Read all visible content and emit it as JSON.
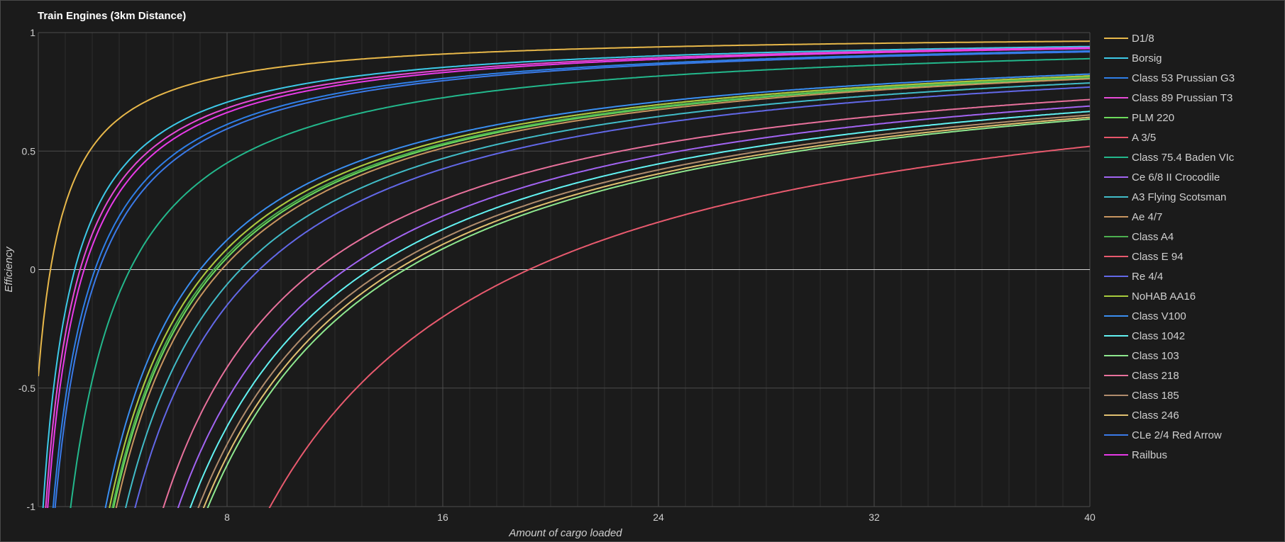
{
  "window": {
    "title": "Train Engines (3km Distance)"
  },
  "colors": {
    "background": "#1b1b1b",
    "grid_major": "#4d4d4d",
    "grid_minor": "#2e2e2e",
    "zero_line": "#d9d9d9",
    "text": "#cfcfcf"
  },
  "chart_data": {
    "type": "line",
    "title": "Train Engines (3km Distance)",
    "xlabel": "Amount of cargo loaded",
    "ylabel": "Efficiency",
    "xlim": [
      1,
      40
    ],
    "ylim": [
      -1,
      1
    ],
    "x_ticks": [
      "8",
      "16",
      "24",
      "32",
      "40"
    ],
    "y_ticks": [
      "1",
      "0.5",
      "0",
      "-0.5",
      "-1"
    ],
    "grid": true,
    "legend": "right",
    "series": [
      {
        "name": "D1/8",
        "color": "#e8b84a",
        "zero_at": 1.45
      },
      {
        "name": "Borsig",
        "color": "#3dc9e8",
        "zero_at": 2.35
      },
      {
        "name": "Class 53 Prussian G3",
        "color": "#2f7fe8",
        "zero_at": 3.1
      },
      {
        "name": "Class 89 Prussian T3",
        "color": "#e84ad8",
        "zero_at": 2.55
      },
      {
        "name": "PLM 220",
        "color": "#6cdc5c",
        "zero_at": 7.6
      },
      {
        "name": "A 3/5",
        "color": "#e8556a",
        "zero_at": 7.3
      },
      {
        "name": "Class 75.4 Baden VIc",
        "color": "#23b88c",
        "zero_at": 4.4
      },
      {
        "name": "Ce 6/8 II Crocodile",
        "color": "#a264f2",
        "zero_at": 12.4
      },
      {
        "name": "A3 Flying Scotsman",
        "color": "#41bcc8",
        "zero_at": 8.5
      },
      {
        "name": "Ae 4/7",
        "color": "#c89560",
        "zero_at": 7.8
      },
      {
        "name": "Class A4",
        "color": "#4caf50",
        "zero_at": 7.5
      },
      {
        "name": "Class E 94",
        "color": "#e85a6e",
        "zero_at": 19.2
      },
      {
        "name": "Re 4/4",
        "color": "#6268e8",
        "zero_at": 9.2
      },
      {
        "name": "NoHAB AA16",
        "color": "#a8cc3c",
        "zero_at": 7.3
      },
      {
        "name": "Class V100",
        "color": "#3a8ef0",
        "zero_at": 7.0
      },
      {
        "name": "Class 1042",
        "color": "#62f2f2",
        "zero_at": 13.3
      },
      {
        "name": "Class 103",
        "color": "#8ee88e",
        "zero_at": 14.6
      },
      {
        "name": "Class 218",
        "color": "#e8719c",
        "zero_at": 11.3
      },
      {
        "name": "Class 185",
        "color": "#b08c6c",
        "zero_at": 13.9
      },
      {
        "name": "Class 246",
        "color": "#e0c070",
        "zero_at": 14.3
      },
      {
        "name": "CLe 2/4 Red Arrow",
        "color": "#3a7ae8",
        "zero_at": 3.25
      },
      {
        "name": "Railbus",
        "color": "#e83ae8",
        "zero_at": 2.7
      }
    ]
  }
}
